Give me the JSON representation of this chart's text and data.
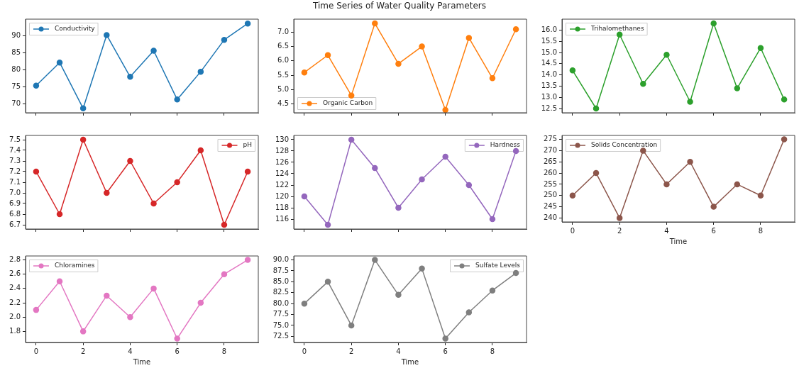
{
  "chart_data": [
    {
      "type": "line",
      "x": [
        0,
        1,
        2,
        3,
        4,
        5,
        6,
        7,
        8,
        9
      ],
      "xlim": [
        -0.45,
        9.45
      ],
      "xticks": [
        0,
        2,
        4,
        6,
        8
      ],
      "ylim": [
        67.3,
        94.9
      ],
      "yticks": [
        70,
        75,
        80,
        85,
        90
      ],
      "tick_labels": "y",
      "legend": "top left",
      "marker": "circle",
      "grid": false,
      "series": [
        {
          "name": "Conductivity",
          "color": "#1f77b4",
          "values": [
            75.3,
            82.1,
            68.6,
            90.2,
            77.9,
            85.6,
            71.2,
            79.4,
            88.8,
            93.6
          ]
        }
      ]
    },
    {
      "type": "line",
      "title": "Time Series of Water Quality Parameters",
      "x": [
        0,
        1,
        2,
        3,
        4,
        5,
        6,
        7,
        8,
        9
      ],
      "xlim": [
        -0.45,
        9.45
      ],
      "xticks": [
        0,
        2,
        4,
        6,
        8
      ],
      "ylim": [
        4.2,
        7.45
      ],
      "yticks": [
        4.5,
        {
          "value": 5,
          "label": "5.0"
        },
        5.5,
        {
          "value": 6,
          "label": "6.0"
        },
        6.5,
        {
          "value": 7,
          "label": "7.0"
        }
      ],
      "tick_labels": "y",
      "legend": "bottom left",
      "marker": "circle",
      "grid": false,
      "series": [
        {
          "name": "Organic Carbon",
          "color": "#ff7f0e",
          "values": [
            5.6,
            6.2,
            4.8,
            7.3,
            5.9,
            6.5,
            4.3,
            6.8,
            5.4,
            7.1
          ]
        }
      ]
    },
    {
      "type": "line",
      "x": [
        0,
        1,
        2,
        3,
        4,
        5,
        6,
        7,
        8,
        9
      ],
      "xlim": [
        -0.45,
        9.45
      ],
      "xticks": [
        0,
        2,
        4,
        6,
        8
      ],
      "ylim": [
        12.31,
        16.49
      ],
      "yticks": [
        12.5,
        {
          "value": 13,
          "label": "13.0"
        },
        13.5,
        {
          "value": 14,
          "label": "14.0"
        },
        14.5,
        {
          "value": 15,
          "label": "15.0"
        },
        15.5,
        {
          "value": 16,
          "label": "16.0"
        }
      ],
      "tick_labels": "y",
      "legend": "top left",
      "marker": "circle",
      "grid": false,
      "series": [
        {
          "name": "Trihalomethanes",
          "color": "#2ca02c",
          "values": [
            14.2,
            12.5,
            15.8,
            13.6,
            14.9,
            12.8,
            16.3,
            13.4,
            15.2,
            12.9
          ]
        }
      ]
    },
    {
      "type": "line",
      "x": [
        0,
        1,
        2,
        3,
        4,
        5,
        6,
        7,
        8,
        9
      ],
      "xlim": [
        -0.45,
        9.45
      ],
      "xticks": [
        0,
        2,
        4,
        6,
        8
      ],
      "ylim": [
        6.66,
        7.54
      ],
      "yticks": [
        6.7,
        6.8,
        6.9,
        {
          "value": 7,
          "label": "7.0"
        },
        7.1,
        7.2,
        7.3,
        7.4,
        7.5
      ],
      "tick_labels": "y",
      "legend": "top right",
      "marker": "circle",
      "grid": false,
      "series": [
        {
          "name": "pH",
          "color": "#d62728",
          "values": [
            7.2,
            6.8,
            7.5,
            7.0,
            7.3,
            6.9,
            7.1,
            7.4,
            6.7,
            7.2
          ]
        }
      ]
    },
    {
      "type": "line",
      "x": [
        0,
        1,
        2,
        3,
        4,
        5,
        6,
        7,
        8,
        9
      ],
      "xlim": [
        -0.45,
        9.45
      ],
      "xticks": [
        0,
        2,
        4,
        6,
        8
      ],
      "ylim": [
        114.25,
        130.75
      ],
      "yticks": [
        116,
        118,
        120,
        122,
        124,
        126,
        128,
        130
      ],
      "tick_labels": "y",
      "legend": "top right",
      "marker": "circle",
      "grid": false,
      "series": [
        {
          "name": "Hardness",
          "color": "#9467bd",
          "values": [
            120,
            115,
            130,
            125,
            118,
            123,
            127,
            122,
            116,
            128
          ]
        }
      ]
    },
    {
      "type": "line",
      "xlabel": "Time",
      "x": [
        0,
        1,
        2,
        3,
        4,
        5,
        6,
        7,
        8,
        9
      ],
      "xlim": [
        -0.45,
        9.45
      ],
      "xticks": [
        0,
        2,
        4,
        6,
        8
      ],
      "ylim": [
        238.25,
        276.75
      ],
      "yticks": [
        240,
        245,
        250,
        255,
        260,
        265,
        270,
        275
      ],
      "legend": "top left",
      "marker": "circle",
      "grid": false,
      "series": [
        {
          "name": "Solids Concentration",
          "color": "#8c564b",
          "values": [
            250,
            260,
            240,
            270,
            255,
            265,
            245,
            255,
            250,
            275
          ]
        }
      ]
    },
    {
      "type": "line",
      "xlabel": "Time",
      "x": [
        0,
        1,
        2,
        3,
        4,
        5,
        6,
        7,
        8,
        9
      ],
      "xlim": [
        -0.45,
        9.45
      ],
      "xticks": [
        0,
        2,
        4,
        6,
        8
      ],
      "ylim": [
        1.645,
        2.855
      ],
      "yticks": [
        1.8,
        {
          "value": 2,
          "label": "2.0"
        },
        2.2,
        2.4,
        2.6,
        2.8
      ],
      "legend": "top left",
      "marker": "circle",
      "grid": false,
      "series": [
        {
          "name": "Chloramines",
          "color": "#e377c2",
          "values": [
            2.1,
            2.5,
            1.8,
            2.3,
            2.0,
            2.4,
            1.7,
            2.2,
            2.6,
            2.8
          ]
        }
      ]
    },
    {
      "type": "line",
      "xlabel": "Time",
      "x": [
        0,
        1,
        2,
        3,
        4,
        5,
        6,
        7,
        8,
        9
      ],
      "xlim": [
        -0.45,
        9.45
      ],
      "xticks": [
        0,
        2,
        4,
        6,
        8
      ],
      "ylim": [
        71.1,
        90.9
      ],
      "yticks": [
        72.5,
        {
          "value": 75,
          "label": "75.0"
        },
        77.5,
        {
          "value": 80,
          "label": "80.0"
        },
        82.5,
        {
          "value": 85,
          "label": "85.0"
        },
        87.5,
        {
          "value": 90,
          "label": "90.0"
        }
      ],
      "legend": "top right",
      "marker": "circle",
      "grid": false,
      "series": [
        {
          "name": "Sulfate Levels",
          "color": "#7f7f7f",
          "values": [
            80,
            85,
            75,
            90,
            82,
            88,
            72,
            78,
            83,
            87
          ]
        }
      ]
    }
  ]
}
